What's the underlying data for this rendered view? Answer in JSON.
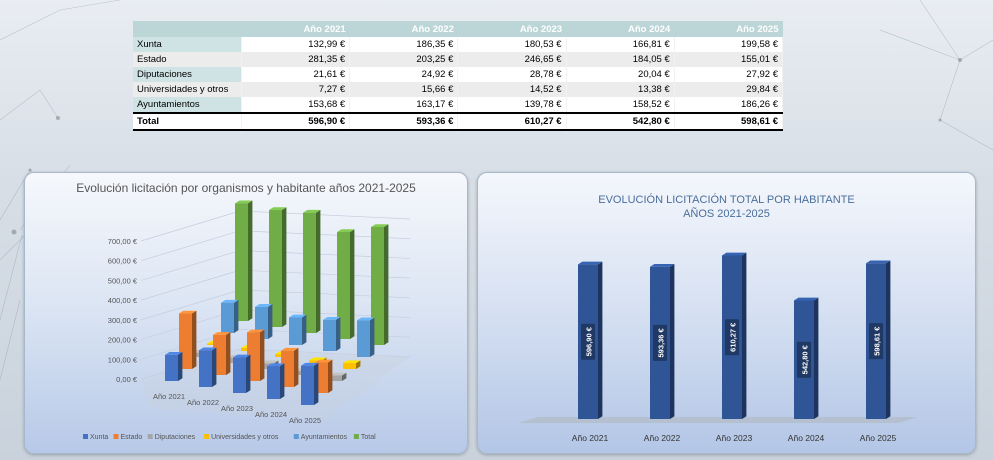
{
  "table": {
    "headers": [
      "",
      "Año 2021",
      "Año 2022",
      "Año 2023",
      "Año 2024",
      "Año 2025"
    ],
    "rows": [
      {
        "label": "Xunta",
        "values": [
          "132,99 €",
          "186,35 €",
          "180,53 €",
          "166,81 €",
          "199,58 €"
        ]
      },
      {
        "label": "Estado",
        "values": [
          "281,35 €",
          "203,25 €",
          "246,65 €",
          "184,05 €",
          "155,01 €"
        ]
      },
      {
        "label": "Diputaciones",
        "values": [
          "21,61 €",
          "24,92 €",
          "28,78 €",
          "20,04 €",
          "27,92 €"
        ]
      },
      {
        "label": "Universidades y otros",
        "values": [
          "7,27 €",
          "15,66 €",
          "14,52 €",
          "13,38 €",
          "29,84 €"
        ]
      },
      {
        "label": "Ayuntamientos",
        "values": [
          "153,68 €",
          "163,17 €",
          "139,78 €",
          "158,52 €",
          "186,26 €"
        ]
      }
    ],
    "total": {
      "label": "Total",
      "values": [
        "596,90 €",
        "593,36 €",
        "610,27 €",
        "542,80 €",
        "598,61 €"
      ]
    }
  },
  "chart_data": [
    {
      "type": "bar",
      "title": "Evolución licitación por organismos y habitante años 2021-2025",
      "categories": [
        "Año 2021",
        "Año 2022",
        "Año 2023",
        "Año 2024",
        "Año 2025"
      ],
      "y_ticks": [
        "0,00 €",
        "100,00 €",
        "200,00 €",
        "300,00 €",
        "400,00 €",
        "500,00 €",
        "600,00 €",
        "700,00 €"
      ],
      "ylim": [
        0,
        700
      ],
      "legend_position": "bottom",
      "series": [
        {
          "name": "Xunta",
          "color": "#4472c4",
          "values": [
            132.99,
            186.35,
            180.53,
            166.81,
            199.58
          ]
        },
        {
          "name": "Estado",
          "color": "#ed7d31",
          "values": [
            281.35,
            203.25,
            246.65,
            184.05,
            155.01
          ]
        },
        {
          "name": "Diputaciones",
          "color": "#a5a5a5",
          "values": [
            21.61,
            24.92,
            28.78,
            20.04,
            27.92
          ]
        },
        {
          "name": "Universidades y otros",
          "color": "#ffc000",
          "values": [
            7.27,
            15.66,
            14.52,
            13.38,
            29.84
          ]
        },
        {
          "name": "Ayuntamientos",
          "color": "#5b9bd5",
          "values": [
            153.68,
            163.17,
            139.78,
            158.52,
            186.26
          ]
        },
        {
          "name": "Total",
          "color": "#70ad47",
          "values": [
            596.9,
            593.36,
            610.27,
            542.8,
            598.61
          ]
        }
      ]
    },
    {
      "type": "bar",
      "title": "EVOLUCIÓN LICITACIÓN TOTAL POR HABITANTE",
      "subtitle": "AÑOS 2021-2025",
      "categories": [
        "Año 2021",
        "Año 2022",
        "Año 2023",
        "Año 2024",
        "Año 2025"
      ],
      "values": [
        596.9,
        593.36,
        610.27,
        542.8,
        598.61
      ],
      "data_labels": [
        "596,90 €",
        "593,36 €",
        "610,27 €",
        "542,80 €",
        "598,61 €"
      ],
      "color": "#2f5597"
    }
  ]
}
